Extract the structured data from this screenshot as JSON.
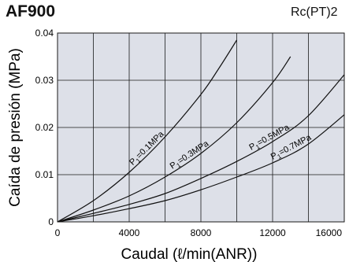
{
  "header": {
    "model": "AF900",
    "port": "Rc(PT)2"
  },
  "chart_data": {
    "type": "line",
    "title": "AF900",
    "xlabel": "Caudal (ℓ/min(ANR))",
    "ylabel": "Caída de presión (MPa)",
    "xlim": [
      0,
      16000
    ],
    "ylim": [
      0,
      0.04
    ],
    "xticks": [
      "0",
      "4000",
      "8000",
      "12000",
      "16000"
    ],
    "xtick_values": [
      0,
      4000,
      8000,
      12000,
      16000
    ],
    "yticks": [
      "0",
      "0.01",
      "0.02",
      "0.03",
      "0.04"
    ],
    "ytick_values": [
      0,
      0.01,
      0.02,
      0.03,
      0.04
    ],
    "grid": true,
    "series": [
      {
        "name": "P1=0.1MPa",
        "label_sub": "1",
        "label_rest": "=0.1MPa",
        "x": [
          0,
          2000,
          4000,
          6000,
          8000,
          9000,
          10000
        ],
        "y": [
          0,
          0.0045,
          0.0105,
          0.018,
          0.027,
          0.0325,
          0.0385
        ]
      },
      {
        "name": "P1=0.3MPa",
        "label_sub": "1",
        "label_rest": "=0.3MPa",
        "x": [
          0,
          2000,
          4000,
          6000,
          8000,
          10000,
          12000,
          13000
        ],
        "y": [
          0,
          0.0025,
          0.0055,
          0.0095,
          0.0145,
          0.021,
          0.0295,
          0.035
        ]
      },
      {
        "name": "P1=0.5MPa",
        "label_sub": "1",
        "label_rest": "=0.5MPa",
        "x": [
          0,
          2000,
          4000,
          6000,
          8000,
          10000,
          12000,
          14000,
          16400
        ],
        "y": [
          0,
          0.0018,
          0.0037,
          0.006,
          0.0092,
          0.0128,
          0.017,
          0.0225,
          0.033
        ]
      },
      {
        "name": "P1=0.7MPa",
        "label_sub": "1",
        "label_rest": "=0.7MPa",
        "x": [
          0,
          2000,
          4000,
          6000,
          8000,
          10000,
          12000,
          14000,
          16400
        ],
        "y": [
          0,
          0.0013,
          0.0028,
          0.0045,
          0.0068,
          0.0095,
          0.0125,
          0.0165,
          0.024
        ]
      }
    ],
    "colors": {
      "plot_bg": "#dde0e8",
      "grid": "#1a1a1a",
      "line": "#111111"
    }
  }
}
